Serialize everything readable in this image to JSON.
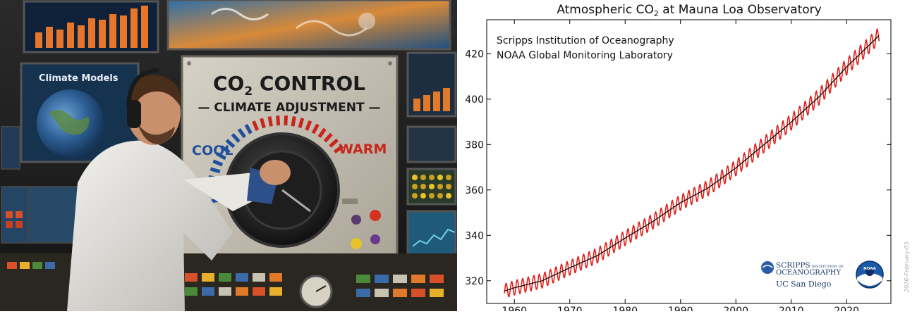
{
  "illustration": {
    "screen_label": "Climate Models",
    "panel_title_prefix": "CO",
    "panel_title_sub": "2",
    "panel_title_suffix": " CONTROL",
    "panel_subtitle": "— CLIMATE ADJUSTMENT —",
    "cool_label": "COOL",
    "warm_label": "WARM",
    "colors": {
      "cool": "#1f4f9e",
      "warm": "#c8261d",
      "panel": "#c9c4b8"
    }
  },
  "chart_data": {
    "type": "line",
    "title_prefix": "Atmospheric CO",
    "title_sub": "2",
    "title_suffix": " at Mauna Loa Observatory",
    "credits": [
      "Scripps Institution of Oceanography",
      "NOAA Global Monitoring Laboratory"
    ],
    "xlim": [
      1955,
      2028
    ],
    "ylim": [
      310,
      435
    ],
    "xticks": [
      1960,
      1970,
      1980,
      1990,
      2000,
      2010,
      2020
    ],
    "yticks": [
      320,
      340,
      360,
      380,
      400,
      420
    ],
    "grid": false,
    "series": [
      {
        "label": "monthly",
        "color": "#e0201b",
        "seasonal_amplitude": 3.2,
        "x": [
          1958.2,
          2025.9
        ],
        "trend": [
          [
            1958,
            315.3
          ],
          [
            1960,
            316.9
          ],
          [
            1965,
            320.0
          ],
          [
            1970,
            325.7
          ],
          [
            1975,
            331.1
          ],
          [
            1980,
            338.8
          ],
          [
            1985,
            346.1
          ],
          [
            1990,
            354.4
          ],
          [
            1995,
            360.9
          ],
          [
            2000,
            369.7
          ],
          [
            2005,
            379.8
          ],
          [
            2010,
            389.9
          ],
          [
            2015,
            401.0
          ],
          [
            2020,
            414.2
          ],
          [
            2025,
            426.0
          ]
        ]
      },
      {
        "label": "trend",
        "color": "#000000",
        "x": [
          1958.2,
          2025.9
        ],
        "trend": [
          [
            1958,
            315.3
          ],
          [
            1960,
            316.9
          ],
          [
            1965,
            320.0
          ],
          [
            1970,
            325.7
          ],
          [
            1975,
            331.1
          ],
          [
            1980,
            338.8
          ],
          [
            1985,
            346.1
          ],
          [
            1990,
            354.4
          ],
          [
            1995,
            360.9
          ],
          [
            2000,
            369.7
          ],
          [
            2005,
            379.8
          ],
          [
            2010,
            389.9
          ],
          [
            2015,
            401.0
          ],
          [
            2020,
            414.2
          ],
          [
            2025,
            426.0
          ]
        ]
      }
    ],
    "logos": {
      "scripps_line1": "SCRIPPS",
      "scripps_small": "INSTITUTION OF",
      "scripps_line2": "OCEANOGRAPHY",
      "ucsd": "UC San Diego",
      "noaa": "NOAA"
    },
    "datestamp": "2026-February-05"
  }
}
